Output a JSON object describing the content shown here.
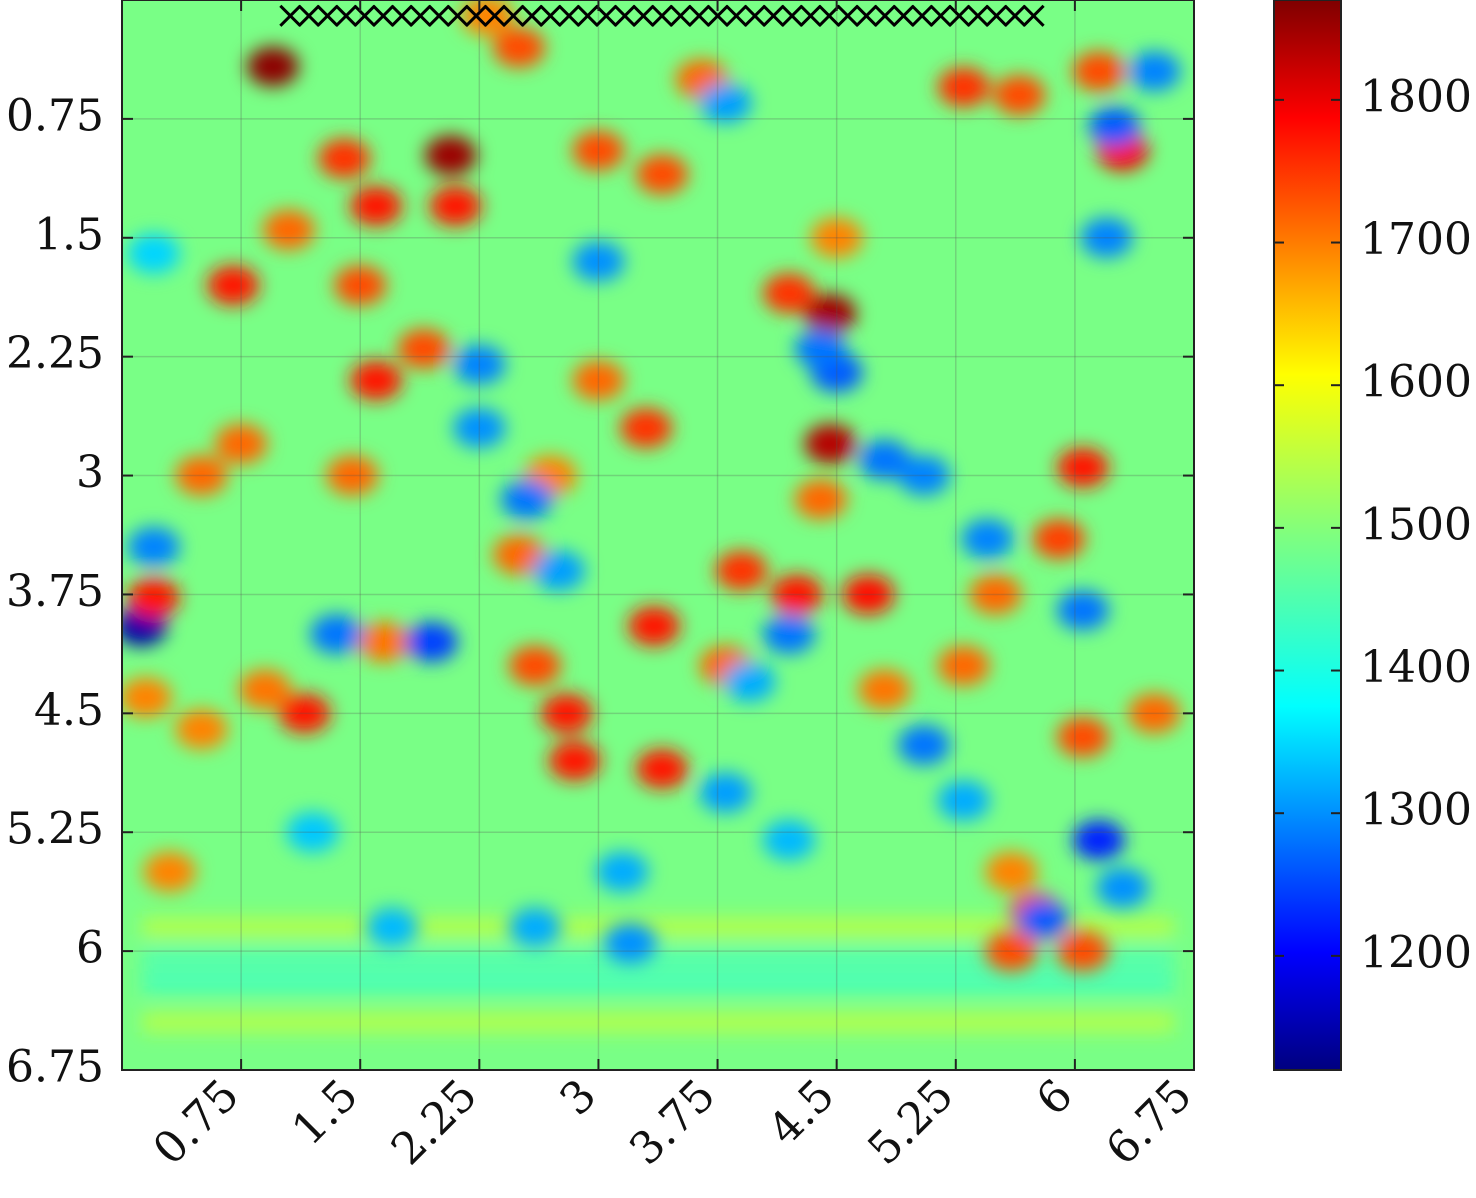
{
  "chart_data": {
    "type": "heatmap",
    "title": "",
    "xlabel": "",
    "ylabel": "",
    "xlim": [
      0,
      6.75
    ],
    "ylim": [
      6.75,
      0
    ],
    "x_ticks": [
      "0.75",
      "1.5",
      "2.25",
      "3",
      "3.75",
      "4.5",
      "5.25",
      "6",
      "6.75"
    ],
    "y_ticks": [
      "0.75",
      "1.5",
      "2.25",
      "3",
      "3.75",
      "4.5",
      "5.25",
      "6",
      "6.75"
    ],
    "grid": true,
    "colormap": "jet",
    "clim": [
      1120,
      1870
    ],
    "colorbar_ticks": [
      "1200",
      "1300",
      "1400",
      "1500",
      "1600",
      "1700",
      "1800"
    ],
    "colorbar_tick_values": [
      1200,
      1300,
      1400,
      1500,
      1600,
      1700,
      1800
    ],
    "background_value": 1490,
    "markers": {
      "symbol": "x",
      "y": 0.1,
      "x_start": 1.06,
      "x_end": 5.74,
      "count": 41
    },
    "blobs": [
      {
        "x": 0.95,
        "y": 0.42,
        "value": 1860
      },
      {
        "x": 2.07,
        "y": 0.98,
        "value": 1850
      },
      {
        "x": 4.46,
        "y": 1.98,
        "value": 1845
      },
      {
        "x": 4.46,
        "y": 2.8,
        "value": 1830
      },
      {
        "x": 0.12,
        "y": 3.95,
        "value": 1150
      },
      {
        "x": 0.2,
        "y": 3.77,
        "value": 1760
      },
      {
        "x": 2.5,
        "y": 0.3,
        "value": 1720
      },
      {
        "x": 1.4,
        "y": 1.0,
        "value": 1740
      },
      {
        "x": 1.05,
        "y": 1.45,
        "value": 1700
      },
      {
        "x": 1.6,
        "y": 1.3,
        "value": 1760
      },
      {
        "x": 0.7,
        "y": 1.8,
        "value": 1760
      },
      {
        "x": 1.5,
        "y": 1.8,
        "value": 1720
      },
      {
        "x": 1.6,
        "y": 2.4,
        "value": 1760
      },
      {
        "x": 1.9,
        "y": 2.2,
        "value": 1720
      },
      {
        "x": 1.45,
        "y": 3.0,
        "value": 1700
      },
      {
        "x": 3.0,
        "y": 0.95,
        "value": 1720
      },
      {
        "x": 3.4,
        "y": 1.1,
        "value": 1720
      },
      {
        "x": 2.1,
        "y": 1.3,
        "value": 1760
      },
      {
        "x": 3.3,
        "y": 2.7,
        "value": 1740
      },
      {
        "x": 3.0,
        "y": 2.4,
        "value": 1700
      },
      {
        "x": 4.2,
        "y": 1.85,
        "value": 1740
      },
      {
        "x": 4.4,
        "y": 3.15,
        "value": 1700
      },
      {
        "x": 4.7,
        "y": 3.75,
        "value": 1770
      },
      {
        "x": 4.25,
        "y": 3.75,
        "value": 1760
      },
      {
        "x": 3.9,
        "y": 3.6,
        "value": 1740
      },
      {
        "x": 3.35,
        "y": 3.95,
        "value": 1760
      },
      {
        "x": 2.8,
        "y": 4.5,
        "value": 1760
      },
      {
        "x": 2.85,
        "y": 4.8,
        "value": 1760
      },
      {
        "x": 3.4,
        "y": 4.85,
        "value": 1760
      },
      {
        "x": 2.6,
        "y": 4.2,
        "value": 1720
      },
      {
        "x": 1.15,
        "y": 4.5,
        "value": 1760
      },
      {
        "x": 5.3,
        "y": 0.55,
        "value": 1740
      },
      {
        "x": 5.65,
        "y": 0.6,
        "value": 1720
      },
      {
        "x": 6.3,
        "y": 0.95,
        "value": 1780
      },
      {
        "x": 6.15,
        "y": 0.45,
        "value": 1720
      },
      {
        "x": 6.05,
        "y": 2.95,
        "value": 1760
      },
      {
        "x": 5.9,
        "y": 3.4,
        "value": 1730
      },
      {
        "x": 5.5,
        "y": 3.75,
        "value": 1700
      },
      {
        "x": 5.3,
        "y": 4.2,
        "value": 1700
      },
      {
        "x": 6.05,
        "y": 4.65,
        "value": 1720
      },
      {
        "x": 6.5,
        "y": 4.5,
        "value": 1700
      },
      {
        "x": 5.75,
        "y": 5.75,
        "value": 1730
      },
      {
        "x": 5.6,
        "y": 6.0,
        "value": 1720
      },
      {
        "x": 6.05,
        "y": 6.0,
        "value": 1720
      },
      {
        "x": 0.3,
        "y": 5.5,
        "value": 1680
      },
      {
        "x": 0.5,
        "y": 4.6,
        "value": 1680
      },
      {
        "x": 5.6,
        "y": 5.5,
        "value": 1680
      },
      {
        "x": 0.75,
        "y": 2.8,
        "value": 1700
      },
      {
        "x": 2.3,
        "y": 0.1,
        "value": 1680
      },
      {
        "x": 2.5,
        "y": 3.5,
        "value": 1700
      },
      {
        "x": 3.8,
        "y": 4.2,
        "value": 1700
      },
      {
        "x": 4.8,
        "y": 4.35,
        "value": 1690
      },
      {
        "x": 0.9,
        "y": 4.35,
        "value": 1690
      },
      {
        "x": 2.7,
        "y": 3.0,
        "value": 1680
      },
      {
        "x": 0.5,
        "y": 3.0,
        "value": 1700
      },
      {
        "x": 0.15,
        "y": 4.4,
        "value": 1680
      },
      {
        "x": 1.65,
        "y": 4.05,
        "value": 1690
      },
      {
        "x": 4.5,
        "y": 1.5,
        "value": 1680
      },
      {
        "x": 3.65,
        "y": 0.5,
        "value": 1700
      },
      {
        "x": 3.8,
        "y": 0.65,
        "value": 1330
      },
      {
        "x": 4.5,
        "y": 2.35,
        "value": 1280
      },
      {
        "x": 4.2,
        "y": 4.0,
        "value": 1300
      },
      {
        "x": 3.95,
        "y": 4.3,
        "value": 1340
      },
      {
        "x": 5.05,
        "y": 4.7,
        "value": 1300
      },
      {
        "x": 5.3,
        "y": 5.05,
        "value": 1340
      },
      {
        "x": 6.15,
        "y": 5.3,
        "value": 1240
      },
      {
        "x": 6.3,
        "y": 5.6,
        "value": 1320
      },
      {
        "x": 6.5,
        "y": 0.45,
        "value": 1310
      },
      {
        "x": 6.25,
        "y": 0.8,
        "value": 1280
      },
      {
        "x": 6.2,
        "y": 1.5,
        "value": 1310
      },
      {
        "x": 5.8,
        "y": 5.8,
        "value": 1280
      },
      {
        "x": 3.2,
        "y": 5.95,
        "value": 1320
      },
      {
        "x": 3.15,
        "y": 5.5,
        "value": 1340
      },
      {
        "x": 4.2,
        "y": 5.3,
        "value": 1350
      },
      {
        "x": 1.95,
        "y": 4.05,
        "value": 1260
      },
      {
        "x": 1.35,
        "y": 4.0,
        "value": 1300
      },
      {
        "x": 0.2,
        "y": 3.45,
        "value": 1310
      },
      {
        "x": 2.55,
        "y": 3.15,
        "value": 1300
      },
      {
        "x": 2.75,
        "y": 3.6,
        "value": 1330
      },
      {
        "x": 2.25,
        "y": 2.3,
        "value": 1310
      },
      {
        "x": 2.25,
        "y": 2.7,
        "value": 1320
      },
      {
        "x": 3.0,
        "y": 1.65,
        "value": 1320
      },
      {
        "x": 4.4,
        "y": 2.2,
        "value": 1300
      },
      {
        "x": 5.05,
        "y": 3.0,
        "value": 1310
      },
      {
        "x": 5.45,
        "y": 3.4,
        "value": 1310
      },
      {
        "x": 6.05,
        "y": 3.85,
        "value": 1300
      },
      {
        "x": 1.7,
        "y": 5.85,
        "value": 1350
      },
      {
        "x": 2.6,
        "y": 5.85,
        "value": 1340
      },
      {
        "x": 4.8,
        "y": 2.9,
        "value": 1300
      },
      {
        "x": 1.2,
        "y": 5.25,
        "value": 1360
      },
      {
        "x": 0.2,
        "y": 1.6,
        "value": 1370
      },
      {
        "x": 3.8,
        "y": 5.0,
        "value": 1330
      }
    ]
  }
}
